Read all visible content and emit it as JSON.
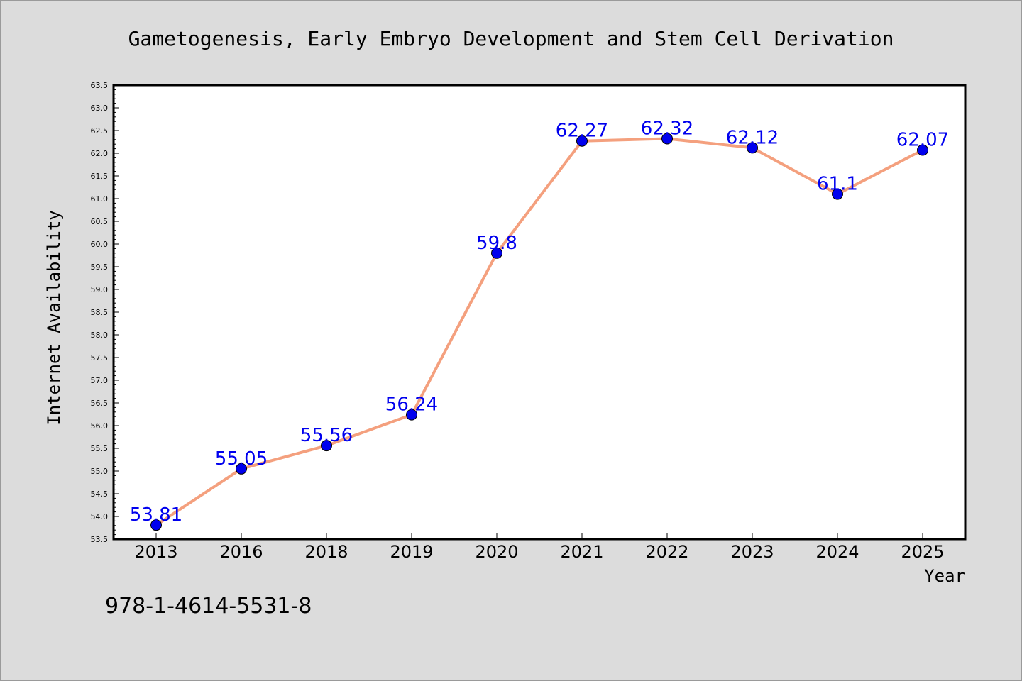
{
  "chart_data": {
    "type": "line",
    "title": "Gametogenesis, Early Embryo Development and Stem Cell Derivation",
    "xlabel": "Year",
    "ylabel": "Internet Availability",
    "categories": [
      "2013",
      "2016",
      "2018",
      "2019",
      "2020",
      "2021",
      "2022",
      "2023",
      "2024",
      "2025"
    ],
    "series": [
      {
        "values": [
          53.81,
          55.05,
          55.56,
          56.24,
          59.8,
          62.27,
          62.32,
          62.12,
          61.1,
          62.07
        ],
        "labels": [
          "53.81",
          "55.05",
          "55.56",
          "56.24",
          "59.8",
          "62.27",
          "62.32",
          "62.12",
          "61.1",
          "62.07"
        ]
      }
    ],
    "ylim": [
      53.5,
      63.5
    ],
    "yticks": [
      "53.5",
      "54.0",
      "54.5",
      "55.0",
      "55.5",
      "56.0",
      "56.5",
      "57.0",
      "57.5",
      "58.0",
      "58.5",
      "59.0",
      "59.5",
      "60.0",
      "60.5",
      "61.0",
      "61.5",
      "62.0",
      "62.5",
      "63.0",
      "63.5"
    ],
    "grid": false,
    "colors": {
      "line": "#f4a07e",
      "marker": "#0000ee",
      "label": "#0000ee",
      "background": "#dcdcdc",
      "plot_background": "#ffffff"
    }
  },
  "footer": {
    "isbn": "978-1-4614-5531-8"
  }
}
